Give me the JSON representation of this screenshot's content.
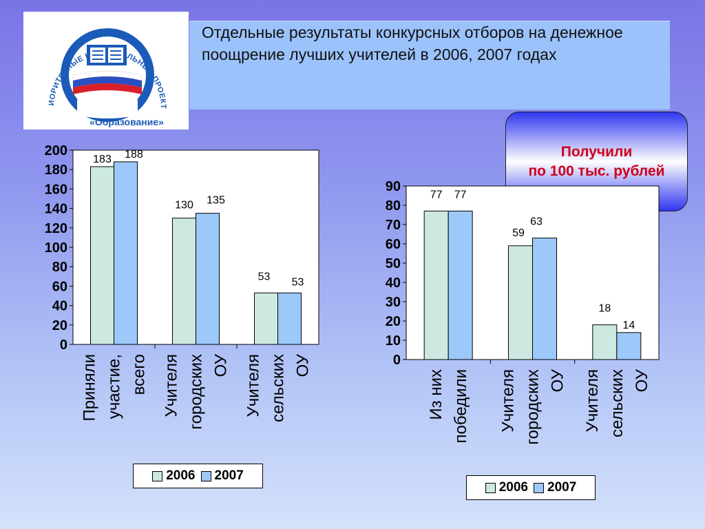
{
  "title": "Отдельные результаты конкурсных отборов  на денежное поощрение лучших учителей в 2006, 2007 годах",
  "logo": {
    "arc_text": "ПРИОРИТЕТНЫЕ НАЦИОНАЛЬНЫЕ ПРОЕКТЫ",
    "name": "«Образование»"
  },
  "callout": {
    "line1": "Получили",
    "line2": "по 100 тыс. рублей"
  },
  "colors": {
    "series_2006": "#cce8e0",
    "series_2007": "#9cc8fa"
  },
  "chart_data": [
    {
      "type": "bar",
      "categories": [
        "Приняли участие, всего",
        "Учителя городских ОУ",
        "Учителя сельских ОУ"
      ],
      "category_lines": [
        [
          "Приняли",
          "участие,",
          "всего"
        ],
        [
          "Учителя",
          "городских",
          "ОУ"
        ],
        [
          "Учителя",
          "сельских",
          "ОУ"
        ]
      ],
      "series": [
        {
          "name": "2006",
          "values": [
            183,
            130,
            53
          ]
        },
        {
          "name": "2007",
          "values": [
            188,
            135,
            53
          ]
        }
      ],
      "ylim": [
        0,
        200
      ],
      "yticks": [
        0,
        20,
        40,
        60,
        80,
        100,
        120,
        140,
        160,
        180,
        200
      ],
      "legend": "bottom",
      "grid": false
    },
    {
      "type": "bar",
      "categories": [
        "Из них победили",
        "Учителя городских ОУ",
        "Учителя сельских ОУ"
      ],
      "category_lines": [
        [
          "Из них",
          "победили"
        ],
        [
          "Учителя",
          "городских",
          "ОУ"
        ],
        [
          "Учителя",
          "сельских",
          "ОУ"
        ]
      ],
      "series": [
        {
          "name": "2006",
          "values": [
            77,
            59,
            18
          ]
        },
        {
          "name": "2007",
          "values": [
            77,
            63,
            14
          ]
        }
      ],
      "ylim": [
        0,
        90
      ],
      "yticks": [
        0,
        10,
        20,
        30,
        40,
        50,
        60,
        70,
        80,
        90
      ],
      "legend": "bottom",
      "grid": false
    }
  ]
}
